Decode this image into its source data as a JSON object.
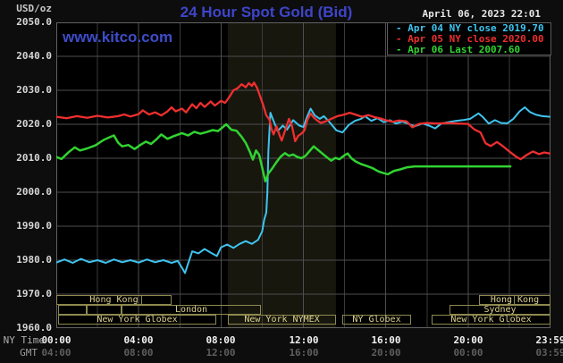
{
  "header": {
    "title": "24 Hour Spot Gold (Bid)",
    "datetime": "April 06, 2023 22:01",
    "units_label": "USD/oz",
    "watermark": "www.kitco.com"
  },
  "colors": {
    "background": "#0d0d0d",
    "plot_bg": "#000000",
    "grid_major": "#4e4e4e",
    "grid_minor": "#3a3a3a",
    "frame": "#626262",
    "band": "#17170e",
    "legend_border": "#5a5a5a",
    "session_border": "#8e894f",
    "session_text": "#dcd08c",
    "title_blue": "#3e45c9",
    "cyan": "#3fc4ef",
    "red": "#ee2f2f",
    "green": "#31d331"
  },
  "legend": {
    "position": "top-right",
    "items": [
      {
        "dash": "-",
        "label": "Apr 04 NY close 2019.70",
        "color": "#3fc4ef"
      },
      {
        "dash": "-",
        "label": "Apr 05 NY close 2020.00",
        "color": "#ee2f2f"
      },
      {
        "dash": "-",
        "label": "Apr 06 Last 2007.60",
        "color": "#31d331"
      }
    ]
  },
  "axes": {
    "y": {
      "min": 1960,
      "max": 2050,
      "step": 10,
      "tick_labels": [
        "2050.0",
        "2040.0",
        "2030.0",
        "2020.0",
        "2010.0",
        "2000.0",
        "1990.0",
        "1980.0",
        "1970.0",
        "1960.0"
      ]
    },
    "x": {
      "ny_label": "NY Time",
      "gmt_label": "GMT",
      "grid_step_hours": 2,
      "ticks": [
        {
          "h": 0,
          "ny": "00:00",
          "gmt": "04:00"
        },
        {
          "h": 4,
          "ny": "04:00",
          "gmt": "08:00"
        },
        {
          "h": 8,
          "ny": "08:00",
          "gmt": "12:00"
        },
        {
          "h": 12,
          "ny": "12:00",
          "gmt": "16:00"
        },
        {
          "h": 16,
          "ny": "16:00",
          "gmt": "20:00"
        },
        {
          "h": 20,
          "ny": "20:00",
          "gmt": "00:00"
        },
        {
          "h": 23.983,
          "ny": "23:59",
          "gmt": "03:59"
        }
      ]
    }
  },
  "band": {
    "start_h": 8.33,
    "end_h": 13.58
  },
  "sessions": {
    "rows": [
      [
        {
          "x0_h": 0,
          "x1_h": 5.6,
          "label": "Hong Kong",
          "dividers_h": [
            4.08
          ]
        },
        {
          "x0_h": 20.53,
          "x1_h": 24,
          "label": "Hong Kong",
          "dividers_h": [
            22.18
          ]
        }
      ],
      [
        {
          "x0_h": 0.09,
          "x1_h": 1.47,
          "label": ""
        },
        {
          "x0_h": 1.47,
          "x1_h": 3.17,
          "label": ""
        },
        {
          "x0_h": 3.17,
          "x1_h": 9.94,
          "label": "London"
        },
        {
          "x0_h": 19.1,
          "x1_h": 24,
          "label": "Sydney"
        }
      ],
      [
        {
          "x0_h": 0.09,
          "x1_h": 7.77,
          "label": "New York Globex"
        },
        {
          "x0_h": 8.33,
          "x1_h": 13.58,
          "label": "New York NYMEX"
        },
        {
          "x0_h": 13.9,
          "x1_h": 17.23,
          "label": "NY Globex"
        },
        {
          "x0_h": 18.23,
          "x1_h": 24,
          "label": "New York Globex"
        }
      ]
    ]
  },
  "chart_data": {
    "type": "line",
    "title": "24 Hour Spot Gold (Bid)",
    "xlabel": "NY Time (hours 0-24)",
    "ylabel": "USD/oz",
    "xlim_hours": [
      0,
      24
    ],
    "ylim": [
      1960,
      2050
    ],
    "grid": true,
    "legend_position": "top-right",
    "series": [
      {
        "id": "apr04",
        "name": "Apr 04 NY close 2019.70",
        "color": "#3fc4ef",
        "width": 2,
        "points": [
          [
            0,
            1979.3
          ],
          [
            0.4,
            1980.2
          ],
          [
            0.8,
            1979.2
          ],
          [
            1.2,
            1980.4
          ],
          [
            1.6,
            1979.4
          ],
          [
            2,
            1980
          ],
          [
            2.4,
            1979.2
          ],
          [
            2.8,
            1980.2
          ],
          [
            3.2,
            1979.4
          ],
          [
            3.6,
            1980
          ],
          [
            4,
            1979.3
          ],
          [
            4.4,
            1980.2
          ],
          [
            4.8,
            1979.4
          ],
          [
            5.2,
            1980
          ],
          [
            5.6,
            1979.2
          ],
          [
            5.9,
            1979.8
          ],
          [
            6.1,
            1977.8
          ],
          [
            6.25,
            1976.2
          ],
          [
            6.4,
            1979
          ],
          [
            6.6,
            1982.6
          ],
          [
            6.9,
            1982
          ],
          [
            7.2,
            1983.3
          ],
          [
            7.5,
            1982.2
          ],
          [
            7.8,
            1981.2
          ],
          [
            8,
            1983.8
          ],
          [
            8.3,
            1984.6
          ],
          [
            8.6,
            1983.6
          ],
          [
            8.9,
            1984.8
          ],
          [
            9.2,
            1985.6
          ],
          [
            9.5,
            1984.8
          ],
          [
            9.8,
            1986
          ],
          [
            10,
            1988.5
          ],
          [
            10.1,
            1992
          ],
          [
            10.2,
            1994
          ],
          [
            10.25,
            2000
          ],
          [
            10.3,
            2012
          ],
          [
            10.4,
            2023.4
          ],
          [
            10.55,
            2021
          ],
          [
            10.75,
            2018
          ],
          [
            11,
            2019.6
          ],
          [
            11.2,
            2018.4
          ],
          [
            11.5,
            2021.2
          ],
          [
            11.8,
            2019.6
          ],
          [
            12,
            2019.2
          ],
          [
            12.2,
            2022.5
          ],
          [
            12.35,
            2024.6
          ],
          [
            12.55,
            2022.6
          ],
          [
            12.8,
            2021.6
          ],
          [
            13,
            2022.4
          ],
          [
            13.3,
            2020.4
          ],
          [
            13.6,
            2018.2
          ],
          [
            13.9,
            2017.6
          ],
          [
            14.2,
            2019.8
          ],
          [
            14.5,
            2021
          ],
          [
            14.8,
            2021.6
          ],
          [
            15,
            2022.4
          ],
          [
            15.3,
            2021
          ],
          [
            15.6,
            2021.8
          ],
          [
            15.9,
            2020.6
          ],
          [
            16.2,
            2021.2
          ],
          [
            16.5,
            2020.2
          ],
          [
            16.8,
            2020.8
          ],
          [
            17,
            2020.4
          ],
          [
            17.4,
            2019.4
          ],
          [
            17.8,
            2020.2
          ],
          [
            18.1,
            2019.6
          ],
          [
            18.4,
            2018.8
          ],
          [
            18.7,
            2020.2
          ],
          [
            19,
            2020.6
          ],
          [
            19.4,
            2021
          ],
          [
            19.8,
            2021.3
          ],
          [
            20.1,
            2021.6
          ],
          [
            20.5,
            2023.2
          ],
          [
            20.7,
            2022.2
          ],
          [
            21,
            2020.2
          ],
          [
            21.3,
            2021.2
          ],
          [
            21.6,
            2020.4
          ],
          [
            21.9,
            2020.3
          ],
          [
            22.2,
            2021.6
          ],
          [
            22.5,
            2023.8
          ],
          [
            22.75,
            2025
          ],
          [
            23,
            2023.6
          ],
          [
            23.3,
            2022.8
          ],
          [
            23.6,
            2022.4
          ],
          [
            23.98,
            2022.2
          ]
        ]
      },
      {
        "id": "apr05",
        "name": "Apr 05 NY close 2020.00",
        "color": "#ee2f2f",
        "width": 2.3,
        "points": [
          [
            0,
            2022.2
          ],
          [
            0.5,
            2021.8
          ],
          [
            1,
            2022.4
          ],
          [
            1.5,
            2021.9
          ],
          [
            2,
            2022.5
          ],
          [
            2.5,
            2022
          ],
          [
            3,
            2022.4
          ],
          [
            3.3,
            2022.9
          ],
          [
            3.6,
            2022.3
          ],
          [
            4,
            2023
          ],
          [
            4.2,
            2024.1
          ],
          [
            4.5,
            2022.9
          ],
          [
            4.8,
            2023.5
          ],
          [
            5.1,
            2022.6
          ],
          [
            5.4,
            2023.8
          ],
          [
            5.6,
            2025
          ],
          [
            5.8,
            2023.8
          ],
          [
            6.1,
            2024.6
          ],
          [
            6.3,
            2023.5
          ],
          [
            6.6,
            2025.9
          ],
          [
            6.8,
            2024.7
          ],
          [
            7,
            2026.3
          ],
          [
            7.2,
            2025.1
          ],
          [
            7.5,
            2026.7
          ],
          [
            7.7,
            2025.5
          ],
          [
            8,
            2026.9
          ],
          [
            8.2,
            2026.3
          ],
          [
            8.4,
            2028
          ],
          [
            8.6,
            2030
          ],
          [
            8.8,
            2030.6
          ],
          [
            9,
            2031.8
          ],
          [
            9.2,
            2030.9
          ],
          [
            9.35,
            2032.1
          ],
          [
            9.5,
            2031.3
          ],
          [
            9.6,
            2032.3
          ],
          [
            9.75,
            2030.7
          ],
          [
            9.9,
            2028.2
          ],
          [
            10.05,
            2025.6
          ],
          [
            10.2,
            2022.6
          ],
          [
            10.35,
            2021.4
          ],
          [
            10.45,
            2018.6
          ],
          [
            10.55,
            2017
          ],
          [
            10.7,
            2019.4
          ],
          [
            10.85,
            2016.6
          ],
          [
            10.95,
            2015.2
          ],
          [
            11.1,
            2018
          ],
          [
            11.3,
            2021.6
          ],
          [
            11.45,
            2019.4
          ],
          [
            11.6,
            2015
          ],
          [
            11.75,
            2016.6
          ],
          [
            11.9,
            2017.2
          ],
          [
            12.05,
            2018.2
          ],
          [
            12.2,
            2021.4
          ],
          [
            12.35,
            2023.2
          ],
          [
            12.5,
            2022
          ],
          [
            12.65,
            2021.2
          ],
          [
            12.85,
            2020.4
          ],
          [
            13.05,
            2020.8
          ],
          [
            13.35,
            2021.6
          ],
          [
            13.65,
            2022.4
          ],
          [
            13.95,
            2022.8
          ],
          [
            14.25,
            2023.4
          ],
          [
            14.55,
            2022.8
          ],
          [
            14.85,
            2022.2
          ],
          [
            15.15,
            2022.7
          ],
          [
            15.45,
            2022.1
          ],
          [
            15.75,
            2021.7
          ],
          [
            16.05,
            2021.1
          ],
          [
            16.35,
            2020.7
          ],
          [
            16.65,
            2021.1
          ],
          [
            17,
            2020.9
          ],
          [
            17.3,
            2019.1
          ],
          [
            17.6,
            2020.1
          ],
          [
            18,
            2020.4
          ],
          [
            18.5,
            2020.2
          ],
          [
            19,
            2020.4
          ],
          [
            19.5,
            2020.2
          ],
          [
            20,
            2020.1
          ],
          [
            20.3,
            2018.5
          ],
          [
            20.6,
            2017.6
          ],
          [
            20.85,
            2014.4
          ],
          [
            21.1,
            2013.6
          ],
          [
            21.4,
            2014.8
          ],
          [
            21.7,
            2013.5
          ],
          [
            22,
            2012
          ],
          [
            22.3,
            2010.6
          ],
          [
            22.55,
            2009.7
          ],
          [
            22.85,
            2011
          ],
          [
            23.15,
            2012
          ],
          [
            23.45,
            2011.2
          ],
          [
            23.7,
            2011.7
          ],
          [
            23.98,
            2011.4
          ]
        ]
      },
      {
        "id": "apr06",
        "name": "Apr 06 Last 2007.60",
        "color": "#31d331",
        "width": 2.5,
        "points": [
          [
            0,
            2010.4
          ],
          [
            0.25,
            2009.8
          ],
          [
            0.6,
            2011.8
          ],
          [
            0.9,
            2013.2
          ],
          [
            1.15,
            2012.3
          ],
          [
            1.5,
            2012.9
          ],
          [
            1.9,
            2013.8
          ],
          [
            2.3,
            2015.4
          ],
          [
            2.6,
            2016.2
          ],
          [
            2.8,
            2016.7
          ],
          [
            3,
            2014.6
          ],
          [
            3.2,
            2013.5
          ],
          [
            3.5,
            2013.9
          ],
          [
            3.8,
            2012.7
          ],
          [
            4.1,
            2014
          ],
          [
            4.35,
            2014.9
          ],
          [
            4.6,
            2014.2
          ],
          [
            4.85,
            2015.5
          ],
          [
            5.1,
            2017
          ],
          [
            5.4,
            2015.7
          ],
          [
            5.7,
            2016.5
          ],
          [
            6.1,
            2017.4
          ],
          [
            6.4,
            2016.7
          ],
          [
            6.7,
            2017.8
          ],
          [
            7,
            2017.2
          ],
          [
            7.3,
            2017.7
          ],
          [
            7.6,
            2018.3
          ],
          [
            7.85,
            2018
          ],
          [
            8,
            2018.7
          ],
          [
            8.25,
            2020
          ],
          [
            8.5,
            2018.4
          ],
          [
            8.75,
            2018.1
          ],
          [
            9,
            2016.3
          ],
          [
            9.2,
            2014.5
          ],
          [
            9.4,
            2011.9
          ],
          [
            9.55,
            2009.6
          ],
          [
            9.7,
            2012.3
          ],
          [
            9.85,
            2011
          ],
          [
            10,
            2007.2
          ],
          [
            10.15,
            2003.2
          ],
          [
            10.3,
            2005.5
          ],
          [
            10.5,
            2007.1
          ],
          [
            10.7,
            2008.9
          ],
          [
            10.9,
            2010.5
          ],
          [
            11.1,
            2011.5
          ],
          [
            11.3,
            2010.7
          ],
          [
            11.5,
            2011.1
          ],
          [
            11.7,
            2010.4
          ],
          [
            11.9,
            2010
          ],
          [
            12.1,
            2010.7
          ],
          [
            12.3,
            2012.1
          ],
          [
            12.5,
            2013.5
          ],
          [
            12.7,
            2012.5
          ],
          [
            12.9,
            2011.5
          ],
          [
            13.1,
            2010.5
          ],
          [
            13.35,
            2009.3
          ],
          [
            13.55,
            2010.1
          ],
          [
            13.75,
            2009.7
          ],
          [
            14,
            2010.9
          ],
          [
            14.15,
            2011.4
          ],
          [
            14.35,
            2009.9
          ],
          [
            14.55,
            2009
          ],
          [
            14.8,
            2008.3
          ],
          [
            15.05,
            2007.8
          ],
          [
            15.35,
            2007.1
          ],
          [
            15.65,
            2006.1
          ],
          [
            15.85,
            2005.7
          ],
          [
            16.1,
            2005.3
          ],
          [
            16.4,
            2006.3
          ],
          [
            16.7,
            2006.7
          ],
          [
            17,
            2007.3
          ],
          [
            17.4,
            2007.6
          ],
          [
            18.5,
            2007.6
          ],
          [
            20,
            2007.6
          ],
          [
            22.05,
            2007.6
          ]
        ]
      }
    ]
  }
}
